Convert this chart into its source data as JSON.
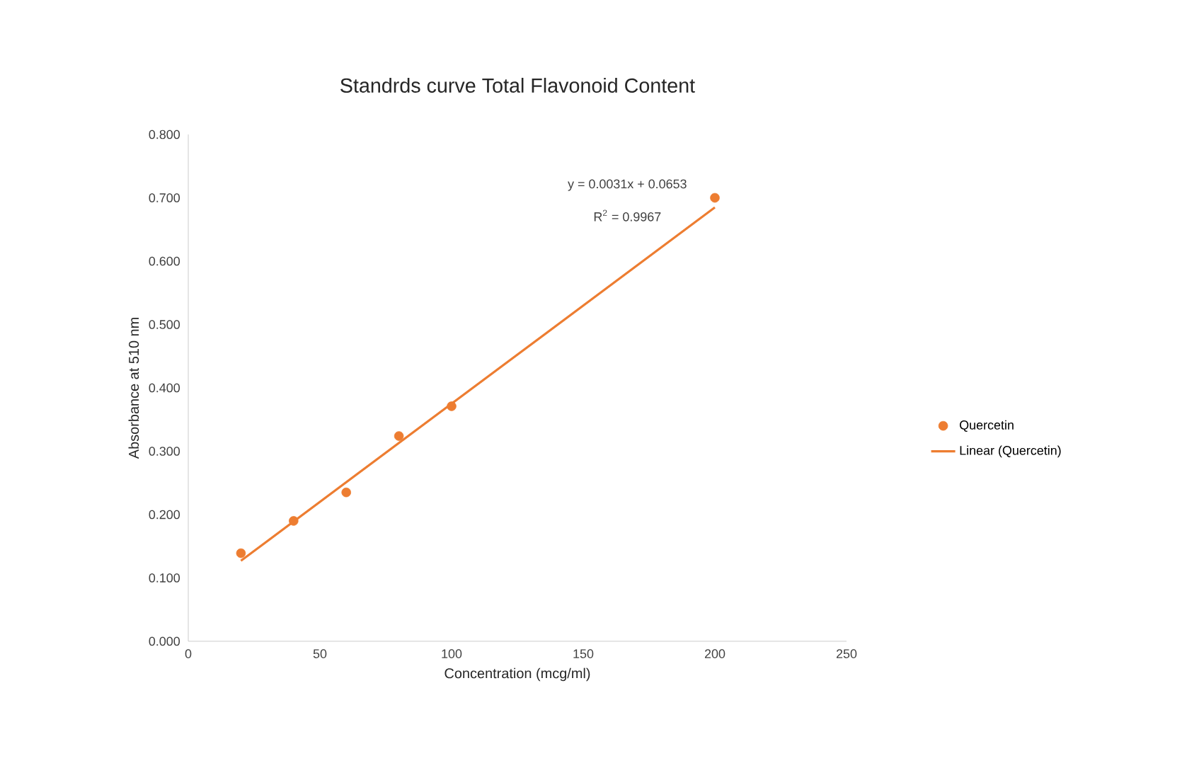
{
  "chart_data": {
    "type": "scatter",
    "title": "Standrds curve Total Flavonoid Content",
    "xlabel": "Concentration (mcg/ml)",
    "ylabel": "Absorbance at 510 nm",
    "x": [
      20,
      40,
      60,
      80,
      100,
      200
    ],
    "series": [
      {
        "name": "Quercetin",
        "color": "#ed7d31",
        "values": [
          0.139,
          0.19,
          0.235,
          0.324,
          0.371,
          0.7
        ],
        "marker": "circle"
      },
      {
        "name": "Linear (Quercetin)",
        "type": "line",
        "color": "#ed7d31",
        "x": [
          20,
          200
        ],
        "values": [
          0.127,
          0.685
        ],
        "marker": "none",
        "line_style": "solid"
      }
    ],
    "annotations": [
      "y = 0.0031x + 0.0653",
      "R$^{2}$ = 0.9967"
    ],
    "xlim": [
      0,
      250
    ],
    "xticks": [
      0,
      50,
      100,
      150,
      200,
      250
    ],
    "ylim": [
      0,
      0.8
    ],
    "yticks": [
      {
        "value": 0,
        "label": "0.000"
      },
      {
        "value": 0.1,
        "label": "0.100"
      },
      {
        "value": 0.2,
        "label": "0.200"
      },
      {
        "value": 0.3,
        "label": "0.300"
      },
      {
        "value": 0.4,
        "label": "0.400"
      },
      {
        "value": 0.5,
        "label": "0.500"
      },
      {
        "value": 0.6,
        "label": "0.600"
      },
      {
        "value": 0.7,
        "label": "0.700"
      },
      {
        "value": 0.8,
        "label": "0.800"
      }
    ],
    "grid": false,
    "legend": "right"
  }
}
